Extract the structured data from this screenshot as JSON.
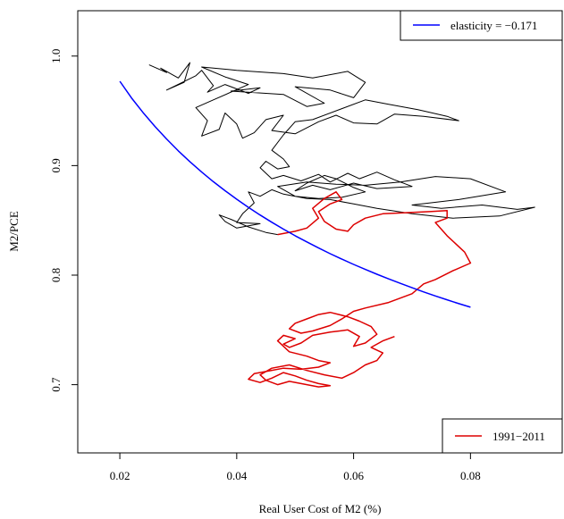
{
  "chart_data": {
    "type": "line",
    "xlabel": "Real User Cost of M2 (%)",
    "ylabel": "M2/PCE",
    "xlim": [
      0.0128,
      0.0957
    ],
    "ylim": [
      0.6377,
      1.0414
    ],
    "x_ticks": [
      {
        "value": 0.02,
        "label": "0.02"
      },
      {
        "value": 0.04,
        "label": "0.04"
      },
      {
        "value": 0.06,
        "label": "0.06"
      },
      {
        "value": 0.08,
        "label": "0.08"
      }
    ],
    "y_ticks": [
      {
        "value": 0.7,
        "label": "0.7"
      },
      {
        "value": 0.8,
        "label": "0.8"
      },
      {
        "value": 0.9,
        "label": "0.9"
      },
      {
        "value": 1.0,
        "label": "1.0"
      }
    ],
    "grid": false,
    "legends": [
      {
        "position": "top-right",
        "entries": [
          {
            "label": "elasticity = −0.171",
            "color": "#0000ff"
          }
        ]
      },
      {
        "position": "bottom-right",
        "entries": [
          {
            "label": "1991−2011",
            "color": "#dd0000"
          }
        ]
      }
    ],
    "series": [
      {
        "color": "#000000",
        "points": [
          [
            0.025,
            0.992
          ],
          [
            0.028,
            0.985
          ],
          [
            0.027,
            0.989
          ],
          [
            0.03,
            0.98
          ],
          [
            0.032,
            0.994
          ],
          [
            0.031,
            0.976
          ],
          [
            0.028,
            0.969
          ],
          [
            0.033,
            0.982
          ],
          [
            0.034,
            0.987
          ],
          [
            0.036,
            0.973
          ],
          [
            0.035,
            0.967
          ],
          [
            0.038,
            0.974
          ],
          [
            0.04,
            0.97
          ],
          [
            0.042,
            0.966
          ],
          [
            0.044,
            0.971
          ],
          [
            0.039,
            0.968
          ],
          [
            0.048,
            0.965
          ],
          [
            0.052,
            0.954
          ],
          [
            0.055,
            0.957
          ],
          [
            0.05,
            0.972
          ],
          [
            0.056,
            0.969
          ],
          [
            0.06,
            0.962
          ],
          [
            0.062,
            0.976
          ],
          [
            0.059,
            0.986
          ],
          [
            0.053,
            0.98
          ],
          [
            0.048,
            0.984
          ],
          [
            0.04,
            0.987
          ],
          [
            0.034,
            0.99
          ],
          [
            0.038,
            0.981
          ],
          [
            0.042,
            0.974
          ],
          [
            0.036,
            0.96
          ],
          [
            0.033,
            0.953
          ],
          [
            0.035,
            0.941
          ],
          [
            0.034,
            0.927
          ],
          [
            0.037,
            0.933
          ],
          [
            0.038,
            0.948
          ],
          [
            0.04,
            0.938
          ],
          [
            0.041,
            0.925
          ],
          [
            0.043,
            0.93
          ],
          [
            0.045,
            0.942
          ],
          [
            0.048,
            0.946
          ],
          [
            0.046,
            0.932
          ],
          [
            0.05,
            0.929
          ],
          [
            0.054,
            0.94
          ],
          [
            0.057,
            0.946
          ],
          [
            0.06,
            0.939
          ],
          [
            0.064,
            0.938
          ],
          [
            0.067,
            0.947
          ],
          [
            0.072,
            0.945
          ],
          [
            0.078,
            0.941
          ],
          [
            0.076,
            0.945
          ],
          [
            0.071,
            0.951
          ],
          [
            0.066,
            0.956
          ],
          [
            0.062,
            0.96
          ],
          [
            0.058,
            0.952
          ],
          [
            0.053,
            0.942
          ],
          [
            0.05,
            0.94
          ],
          [
            0.048,
            0.928
          ],
          [
            0.046,
            0.914
          ],
          [
            0.048,
            0.906
          ],
          [
            0.049,
            0.899
          ],
          [
            0.047,
            0.897
          ],
          [
            0.045,
            0.904
          ],
          [
            0.044,
            0.898
          ],
          [
            0.046,
            0.888
          ],
          [
            0.048,
            0.891
          ],
          [
            0.051,
            0.886
          ],
          [
            0.054,
            0.892
          ],
          [
            0.056,
            0.885
          ],
          [
            0.059,
            0.893
          ],
          [
            0.061,
            0.888
          ],
          [
            0.064,
            0.894
          ],
          [
            0.067,
            0.887
          ],
          [
            0.07,
            0.881
          ],
          [
            0.064,
            0.879
          ],
          [
            0.06,
            0.884
          ],
          [
            0.056,
            0.878
          ],
          [
            0.053,
            0.882
          ],
          [
            0.05,
            0.877
          ],
          [
            0.052,
            0.884
          ],
          [
            0.055,
            0.891
          ],
          [
            0.057,
            0.888
          ],
          [
            0.06,
            0.88
          ],
          [
            0.062,
            0.876
          ],
          [
            0.058,
            0.871
          ],
          [
            0.054,
            0.87
          ],
          [
            0.05,
            0.872
          ],
          [
            0.047,
            0.881
          ],
          [
            0.052,
            0.885
          ],
          [
            0.057,
            0.883
          ],
          [
            0.062,
            0.882
          ],
          [
            0.068,
            0.885
          ],
          [
            0.074,
            0.89
          ],
          [
            0.08,
            0.888
          ],
          [
            0.086,
            0.876
          ],
          [
            0.078,
            0.869
          ],
          [
            0.07,
            0.864
          ],
          [
            0.075,
            0.861
          ],
          [
            0.082,
            0.864
          ],
          [
            0.088,
            0.86
          ],
          [
            0.091,
            0.862
          ],
          [
            0.085,
            0.854
          ],
          [
            0.077,
            0.852
          ],
          [
            0.07,
            0.856
          ],
          [
            0.064,
            0.861
          ],
          [
            0.06,
            0.865
          ],
          [
            0.056,
            0.869
          ],
          [
            0.052,
            0.87
          ],
          [
            0.048,
            0.874
          ],
          [
            0.046,
            0.878
          ],
          [
            0.044,
            0.872
          ],
          [
            0.042,
            0.876
          ],
          [
            0.043,
            0.866
          ],
          [
            0.041,
            0.856
          ],
          [
            0.04,
            0.848
          ],
          [
            0.044,
            0.847
          ],
          [
            0.04,
            0.843
          ],
          [
            0.038,
            0.849
          ],
          [
            0.037,
            0.855
          ],
          [
            0.039,
            0.851
          ],
          [
            0.042,
            0.844
          ],
          [
            0.045,
            0.839
          ],
          [
            0.047,
            0.837
          ]
        ]
      },
      {
        "color": "#dd0000",
        "points": [
          [
            0.047,
            0.837
          ],
          [
            0.05,
            0.84
          ],
          [
            0.052,
            0.843
          ],
          [
            0.054,
            0.852
          ],
          [
            0.053,
            0.861
          ],
          [
            0.055,
            0.87
          ],
          [
            0.057,
            0.876
          ],
          [
            0.058,
            0.869
          ],
          [
            0.056,
            0.865
          ],
          [
            0.054,
            0.858
          ],
          [
            0.055,
            0.849
          ],
          [
            0.057,
            0.842
          ],
          [
            0.059,
            0.84
          ],
          [
            0.06,
            0.846
          ],
          [
            0.062,
            0.852
          ],
          [
            0.065,
            0.856
          ],
          [
            0.069,
            0.857
          ],
          [
            0.073,
            0.858
          ],
          [
            0.076,
            0.859
          ],
          [
            0.076,
            0.852
          ],
          [
            0.074,
            0.848
          ],
          [
            0.076,
            0.836
          ],
          [
            0.079,
            0.821
          ],
          [
            0.08,
            0.811
          ],
          [
            0.077,
            0.804
          ],
          [
            0.074,
            0.796
          ],
          [
            0.072,
            0.792
          ],
          [
            0.07,
            0.783
          ],
          [
            0.066,
            0.775
          ],
          [
            0.062,
            0.77
          ],
          [
            0.06,
            0.767
          ],
          [
            0.058,
            0.76
          ],
          [
            0.056,
            0.754
          ],
          [
            0.053,
            0.749
          ],
          [
            0.051,
            0.747
          ],
          [
            0.049,
            0.751
          ],
          [
            0.05,
            0.756
          ],
          [
            0.052,
            0.76
          ],
          [
            0.054,
            0.764
          ],
          [
            0.056,
            0.766
          ],
          [
            0.059,
            0.762
          ],
          [
            0.061,
            0.758
          ],
          [
            0.063,
            0.753
          ],
          [
            0.064,
            0.746
          ],
          [
            0.062,
            0.738
          ],
          [
            0.06,
            0.735
          ],
          [
            0.061,
            0.744
          ],
          [
            0.059,
            0.75
          ],
          [
            0.056,
            0.748
          ],
          [
            0.053,
            0.745
          ],
          [
            0.051,
            0.738
          ],
          [
            0.049,
            0.734
          ],
          [
            0.048,
            0.737
          ],
          [
            0.05,
            0.742
          ],
          [
            0.048,
            0.745
          ],
          [
            0.047,
            0.74
          ],
          [
            0.049,
            0.73
          ],
          [
            0.052,
            0.726
          ],
          [
            0.054,
            0.722
          ],
          [
            0.056,
            0.72
          ],
          [
            0.054,
            0.716
          ],
          [
            0.051,
            0.714
          ],
          [
            0.048,
            0.715
          ],
          [
            0.045,
            0.712
          ],
          [
            0.043,
            0.71
          ],
          [
            0.042,
            0.705
          ],
          [
            0.044,
            0.702
          ],
          [
            0.046,
            0.706
          ],
          [
            0.048,
            0.711
          ],
          [
            0.05,
            0.708
          ],
          [
            0.052,
            0.704
          ],
          [
            0.054,
            0.701
          ],
          [
            0.056,
            0.699
          ],
          [
            0.054,
            0.698
          ],
          [
            0.051,
            0.701
          ],
          [
            0.049,
            0.703
          ],
          [
            0.047,
            0.7
          ],
          [
            0.045,
            0.704
          ],
          [
            0.044,
            0.709
          ],
          [
            0.046,
            0.715
          ],
          [
            0.049,
            0.718
          ],
          [
            0.052,
            0.713
          ],
          [
            0.055,
            0.709
          ],
          [
            0.058,
            0.706
          ],
          [
            0.06,
            0.711
          ],
          [
            0.062,
            0.718
          ],
          [
            0.064,
            0.722
          ],
          [
            0.065,
            0.729
          ],
          [
            0.063,
            0.734
          ],
          [
            0.065,
            0.74
          ],
          [
            0.067,
            0.744
          ]
        ]
      },
      {
        "color": "#0000ff",
        "points": [
          [
            0.02,
            0.977
          ],
          [
            0.022,
            0.9618
          ],
          [
            0.024,
            0.9483
          ],
          [
            0.026,
            0.9358
          ],
          [
            0.028,
            0.9243
          ],
          [
            0.03,
            0.9134
          ],
          [
            0.032,
            0.9035
          ],
          [
            0.034,
            0.8941
          ],
          [
            0.036,
            0.8853
          ],
          [
            0.038,
            0.8771
          ],
          [
            0.04,
            0.8693
          ],
          [
            0.042,
            0.8619
          ],
          [
            0.044,
            0.8549
          ],
          [
            0.046,
            0.8483
          ],
          [
            0.048,
            0.842
          ],
          [
            0.05,
            0.836
          ],
          [
            0.052,
            0.8303
          ],
          [
            0.054,
            0.8248
          ],
          [
            0.056,
            0.8196
          ],
          [
            0.058,
            0.8146
          ],
          [
            0.06,
            0.8098
          ],
          [
            0.062,
            0.8052
          ],
          [
            0.064,
            0.8008
          ],
          [
            0.066,
            0.7966
          ],
          [
            0.068,
            0.7925
          ],
          [
            0.07,
            0.7885
          ],
          [
            0.072,
            0.7847
          ],
          [
            0.074,
            0.781
          ],
          [
            0.076,
            0.7775
          ],
          [
            0.078,
            0.774
          ],
          [
            0.08,
            0.7707
          ]
        ]
      }
    ]
  }
}
